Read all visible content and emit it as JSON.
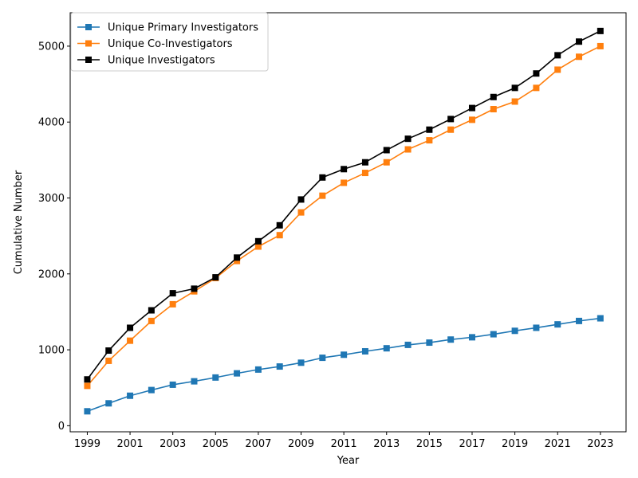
{
  "chart_data": {
    "type": "line",
    "xlabel": "Year",
    "ylabel": "Cumulative Number",
    "x": [
      1999,
      2000,
      2001,
      2002,
      2003,
      2004,
      2005,
      2006,
      2007,
      2008,
      2009,
      2010,
      2011,
      2012,
      2013,
      2014,
      2015,
      2016,
      2017,
      2018,
      2019,
      2020,
      2021,
      2022,
      2023
    ],
    "x_ticks": [
      "1999",
      "2001",
      "2003",
      "2005",
      "2007",
      "2009",
      "2011",
      "2013",
      "2015",
      "2017",
      "2019",
      "2021",
      "2023"
    ],
    "y_ticks": [
      "0",
      "1000",
      "2000",
      "3000",
      "4000",
      "5000"
    ],
    "xlim": [
      1998.2,
      2024.2
    ],
    "ylim": [
      -80,
      5440
    ],
    "grid": false,
    "legend_position": "top-left",
    "marker": "square",
    "series": [
      {
        "name": "Unique Primary Investigators",
        "color": "#1f77b4",
        "values": [
          190,
          295,
          395,
          470,
          540,
          585,
          635,
          690,
          740,
          780,
          830,
          895,
          935,
          980,
          1020,
          1065,
          1095,
          1135,
          1165,
          1205,
          1250,
          1290,
          1335,
          1380,
          1415
        ]
      },
      {
        "name": "Unique Co-Investigators",
        "color": "#ff7f0e",
        "values": [
          525,
          855,
          1120,
          1380,
          1600,
          1770,
          1945,
          2170,
          2360,
          2510,
          2810,
          3030,
          3200,
          3330,
          3470,
          3640,
          3760,
          3900,
          4030,
          4170,
          4270,
          4450,
          4690,
          4860,
          5000
        ]
      },
      {
        "name": "Unique Investigators",
        "color": "#000000",
        "values": [
          610,
          990,
          1290,
          1520,
          1745,
          1805,
          1955,
          2215,
          2430,
          2640,
          2980,
          3270,
          3380,
          3470,
          3630,
          3780,
          3900,
          4040,
          4185,
          4330,
          4450,
          4640,
          4880,
          5060,
          5200
        ]
      }
    ]
  }
}
